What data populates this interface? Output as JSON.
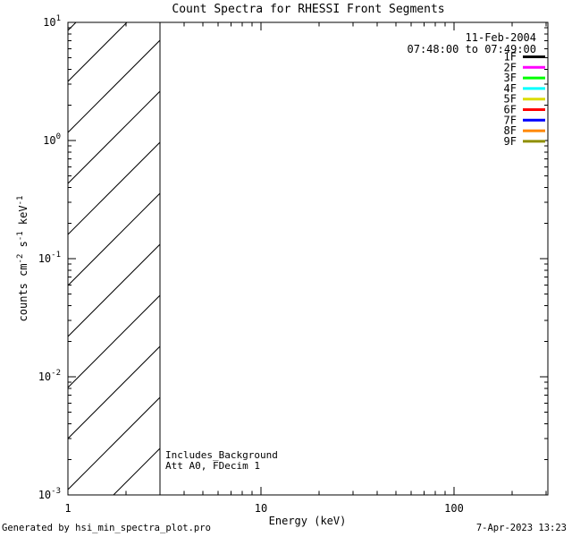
{
  "page": {
    "background_color": "#ffffff",
    "foreground_color": "#000000"
  },
  "footer": {
    "left": "Generated by hsi_min_spectra_plot.pro",
    "right": "7-Apr-2023 13:23"
  },
  "chart_data": {
    "type": "line",
    "title": "Count Spectra for RHESSI Front Segments",
    "xlabel": "Energy (keV)",
    "ylabel": "counts cm-2 s-1 keV-1",
    "ylabel_parts": [
      {
        "t": "counts cm"
      },
      {
        "t": "-2",
        "sup": true
      },
      {
        "t": " s"
      },
      {
        "t": "-1",
        "sup": true
      },
      {
        "t": " keV"
      },
      {
        "t": "-1",
        "sup": true
      }
    ],
    "x_scale": "log",
    "y_scale": "log",
    "xlim": [
      1,
      306
    ],
    "ylim": [
      0.001,
      10
    ],
    "x_major_ticks": [
      1,
      10,
      100
    ],
    "x_tick_labels": [
      "1",
      "10",
      "100"
    ],
    "y_major_exponents": [
      1,
      0,
      -1,
      -2,
      -3
    ],
    "grid": false,
    "legend": {
      "position": "top-right-inside",
      "date": "11-Feb-2004",
      "time_range": "07:48:00 to 07:49:00",
      "entries": [
        {
          "label": "1F",
          "color": "#000000"
        },
        {
          "label": "2F",
          "color": "#ff00ff"
        },
        {
          "label": "3F",
          "color": "#00ff00"
        },
        {
          "label": "4F",
          "color": "#00ffff"
        },
        {
          "label": "5F",
          "color": "#dcdc00"
        },
        {
          "label": "6F",
          "color": "#ff0000"
        },
        {
          "label": "7F",
          "color": "#0000ff"
        },
        {
          "label": "8F",
          "color": "#ff8700"
        },
        {
          "label": "9F",
          "color": "#8f8f00"
        }
      ]
    },
    "series": [],
    "hatched_region": {
      "x_start": 1,
      "x_end": 3,
      "style": "diagonal-hatch"
    },
    "annotations": [
      "Includes_Background",
      "Att A0, FDecim 1"
    ]
  }
}
